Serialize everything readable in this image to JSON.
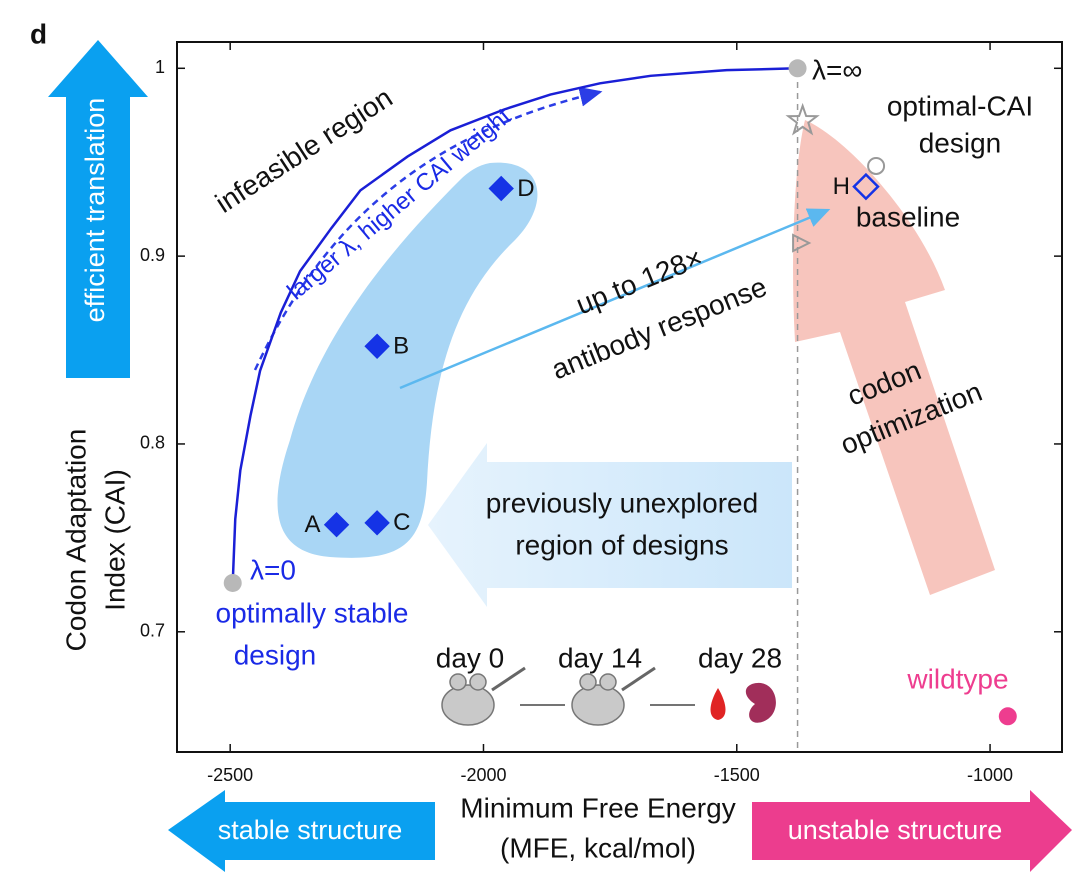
{
  "chart_data": {
    "type": "scatter",
    "panel_label": "d",
    "xlabel": [
      "Minimum Free Energy",
      "(MFE, kcal/mol)"
    ],
    "ylabel": [
      "Codon Adaptation",
      "Index (CAI)"
    ],
    "xlim": [
      -2605,
      -858
    ],
    "ylim": [
      0.636,
      1.014
    ],
    "xticks": [
      -2500,
      -2000,
      -1500,
      -1000
    ],
    "yticks": [
      0.7,
      0.8,
      0.9,
      1
    ],
    "reference_x": -1380,
    "curve": {
      "color": "#1a1fd6",
      "x": [
        -2495,
        -2490,
        -2480,
        -2460,
        -2441,
        -2400,
        -2362,
        -2300,
        -2243,
        -2150,
        -2065,
        -1960,
        -1868,
        -1770,
        -1670,
        -1520,
        -1380
      ],
      "y": [
        0.726,
        0.76,
        0.786,
        0.815,
        0.839,
        0.87,
        0.892,
        0.915,
        0.935,
        0.953,
        0.967,
        0.978,
        0.986,
        0.992,
        0.996,
        0.999,
        1.0
      ]
    },
    "points": [
      {
        "label": "A",
        "x": -2290,
        "y": 0.757,
        "marker": "diamond",
        "color": "#1533e6"
      },
      {
        "label": "C",
        "x": -2210,
        "y": 0.758,
        "marker": "diamond",
        "color": "#1533e6"
      },
      {
        "label": "B",
        "x": -2210,
        "y": 0.852,
        "marker": "diamond",
        "color": "#1533e6"
      },
      {
        "label": "D",
        "x": -1965,
        "y": 0.936,
        "marker": "diamond",
        "color": "#1533e6"
      },
      {
        "label": "H",
        "x": -1245,
        "y": 0.937,
        "marker": "diamond-open",
        "color": "#1533e6"
      },
      {
        "x": -2495,
        "y": 0.726,
        "marker": "circle",
        "color": "#b8b8b8"
      },
      {
        "x": -1380,
        "y": 1.0,
        "marker": "circle",
        "color": "#b8b8b8"
      },
      {
        "x": -1370,
        "y": 0.972,
        "marker": "star-open",
        "color": "#999999"
      },
      {
        "x": -1225,
        "y": 0.948,
        "marker": "circle-open",
        "color": "#999999"
      },
      {
        "x": -1375,
        "y": 0.907,
        "marker": "triangle-open",
        "color": "#999999"
      },
      {
        "x": -965,
        "y": 0.655,
        "marker": "circle",
        "color": "#ee3d8f"
      }
    ],
    "annotations": {
      "infeasible": "infeasible region",
      "lambda_dir": "larger λ, higher CAI weight",
      "lambda_inf": "λ=∞",
      "optimal_cai": [
        "optimal-CAI",
        "design"
      ],
      "lambda_zero": "λ=0",
      "optimal_stable": [
        "optimally stable",
        "design"
      ],
      "response": [
        "up to 128×",
        "antibody response"
      ],
      "codon": [
        "codon",
        "optimization"
      ],
      "unexplored": [
        "previously unexplored",
        "region of designs"
      ],
      "baseline": "baseline",
      "wildtype": "wildtype",
      "days": [
        "day 0",
        "day 14",
        "day 28"
      ],
      "up_arrow": "efficient translation",
      "left_arrow": "stable structure",
      "right_arrow": "unstable structure"
    }
  }
}
